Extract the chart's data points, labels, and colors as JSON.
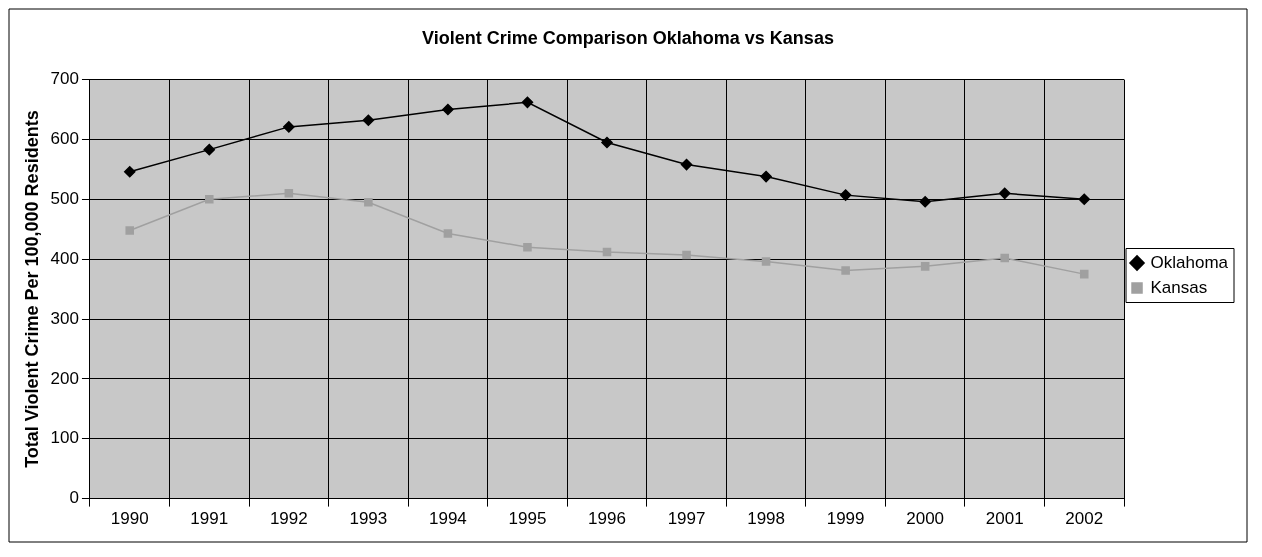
{
  "chart_data": {
    "type": "line",
    "title": "Violent Crime Comparison Oklahoma vs Kansas",
    "ylabel": "Total Violent Crime Per 100,000 Residents",
    "categories": [
      "1990",
      "1991",
      "1992",
      "1993",
      "1994",
      "1995",
      "1996",
      "1997",
      "1998",
      "1999",
      "2000",
      "2001",
      "2002"
    ],
    "series": [
      {
        "name": "Oklahoma",
        "color": "#000000",
        "marker": "diamond",
        "values": [
          546,
          583,
          621,
          632,
          650,
          662,
          595,
          558,
          538,
          507,
          496,
          510,
          500
        ]
      },
      {
        "name": "Kansas",
        "color": "#a0a0a0",
        "marker": "square",
        "values": [
          448,
          500,
          510,
          495,
          443,
          420,
          412,
          407,
          396,
          381,
          388,
          402,
          375
        ]
      }
    ],
    "ylim": [
      0,
      700
    ],
    "yticks": [
      0,
      100,
      200,
      300,
      400,
      500,
      600,
      700
    ],
    "grid": true,
    "legend": "right"
  }
}
